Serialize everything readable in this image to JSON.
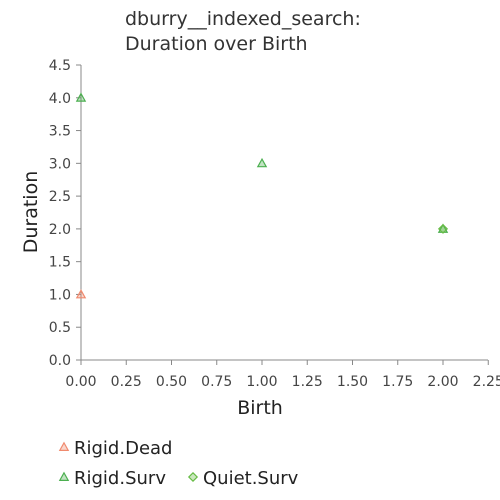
{
  "chart_data": {
    "type": "scatter",
    "title": [
      "dburry__indexed_search:",
      "Duration over Birth"
    ],
    "xlabel": "Birth",
    "ylabel": "Duration",
    "xlim": [
      0,
      2.25
    ],
    "ylim": [
      0,
      4.5
    ],
    "x_ticks": [
      "0.00",
      "0.25",
      "0.50",
      "0.75",
      "1.00",
      "1.25",
      "1.50",
      "1.75",
      "2.00",
      "2.25"
    ],
    "y_ticks": [
      "0.0",
      "0.5",
      "1.0",
      "1.5",
      "2.0",
      "2.5",
      "3.0",
      "3.5",
      "4.0",
      "4.5"
    ],
    "grid": false,
    "legend_position": "bottom-left",
    "series": [
      {
        "name": "Rigid.Dead",
        "marker": "triangle",
        "color": "#f08a6e",
        "points": [
          {
            "x": 0,
            "y": 1
          }
        ]
      },
      {
        "name": "Rigid.Surv",
        "marker": "triangle",
        "color": "#4caf50",
        "points": [
          {
            "x": 0,
            "y": 4
          },
          {
            "x": 1,
            "y": 3
          },
          {
            "x": 2,
            "y": 2
          }
        ]
      },
      {
        "name": "Quiet.Surv",
        "marker": "diamond",
        "color": "#66bb44",
        "points": [
          {
            "x": 2,
            "y": 2
          }
        ]
      }
    ]
  }
}
